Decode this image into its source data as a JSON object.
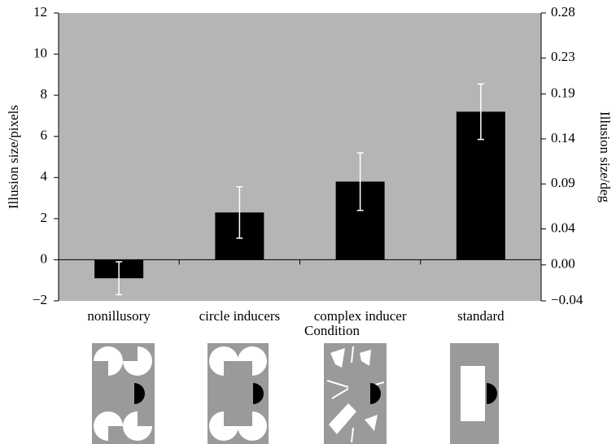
{
  "chart_data": {
    "type": "bar",
    "categories": [
      "nonillusory",
      "circle inducers",
      "complex inducer",
      "standard"
    ],
    "series": [
      {
        "color": "#000000",
        "values": [
          -0.9,
          2.3,
          3.8,
          7.2
        ],
        "errors": [
          0.8,
          1.25,
          1.4,
          1.35
        ],
        "error_color": "#ffffff"
      }
    ],
    "x_label": "Condition",
    "y_label": "Illusion size/pixels",
    "y2_label": "Illusion size/deg",
    "ylim": [
      -2,
      12
    ],
    "yticks": [
      {
        "value": -2,
        "label": "−2"
      },
      0,
      2,
      4,
      6,
      8,
      10,
      12
    ],
    "y2lim": [
      -0.04,
      0.28
    ],
    "y2ticks": [
      {
        "value": -0.04,
        "label": "−0.04"
      },
      {
        "value": 0,
        "label": "0.00"
      },
      0.04,
      0.09,
      0.14,
      0.19,
      0.23,
      0.28
    ],
    "plot_color": "#b5b5b5"
  }
}
